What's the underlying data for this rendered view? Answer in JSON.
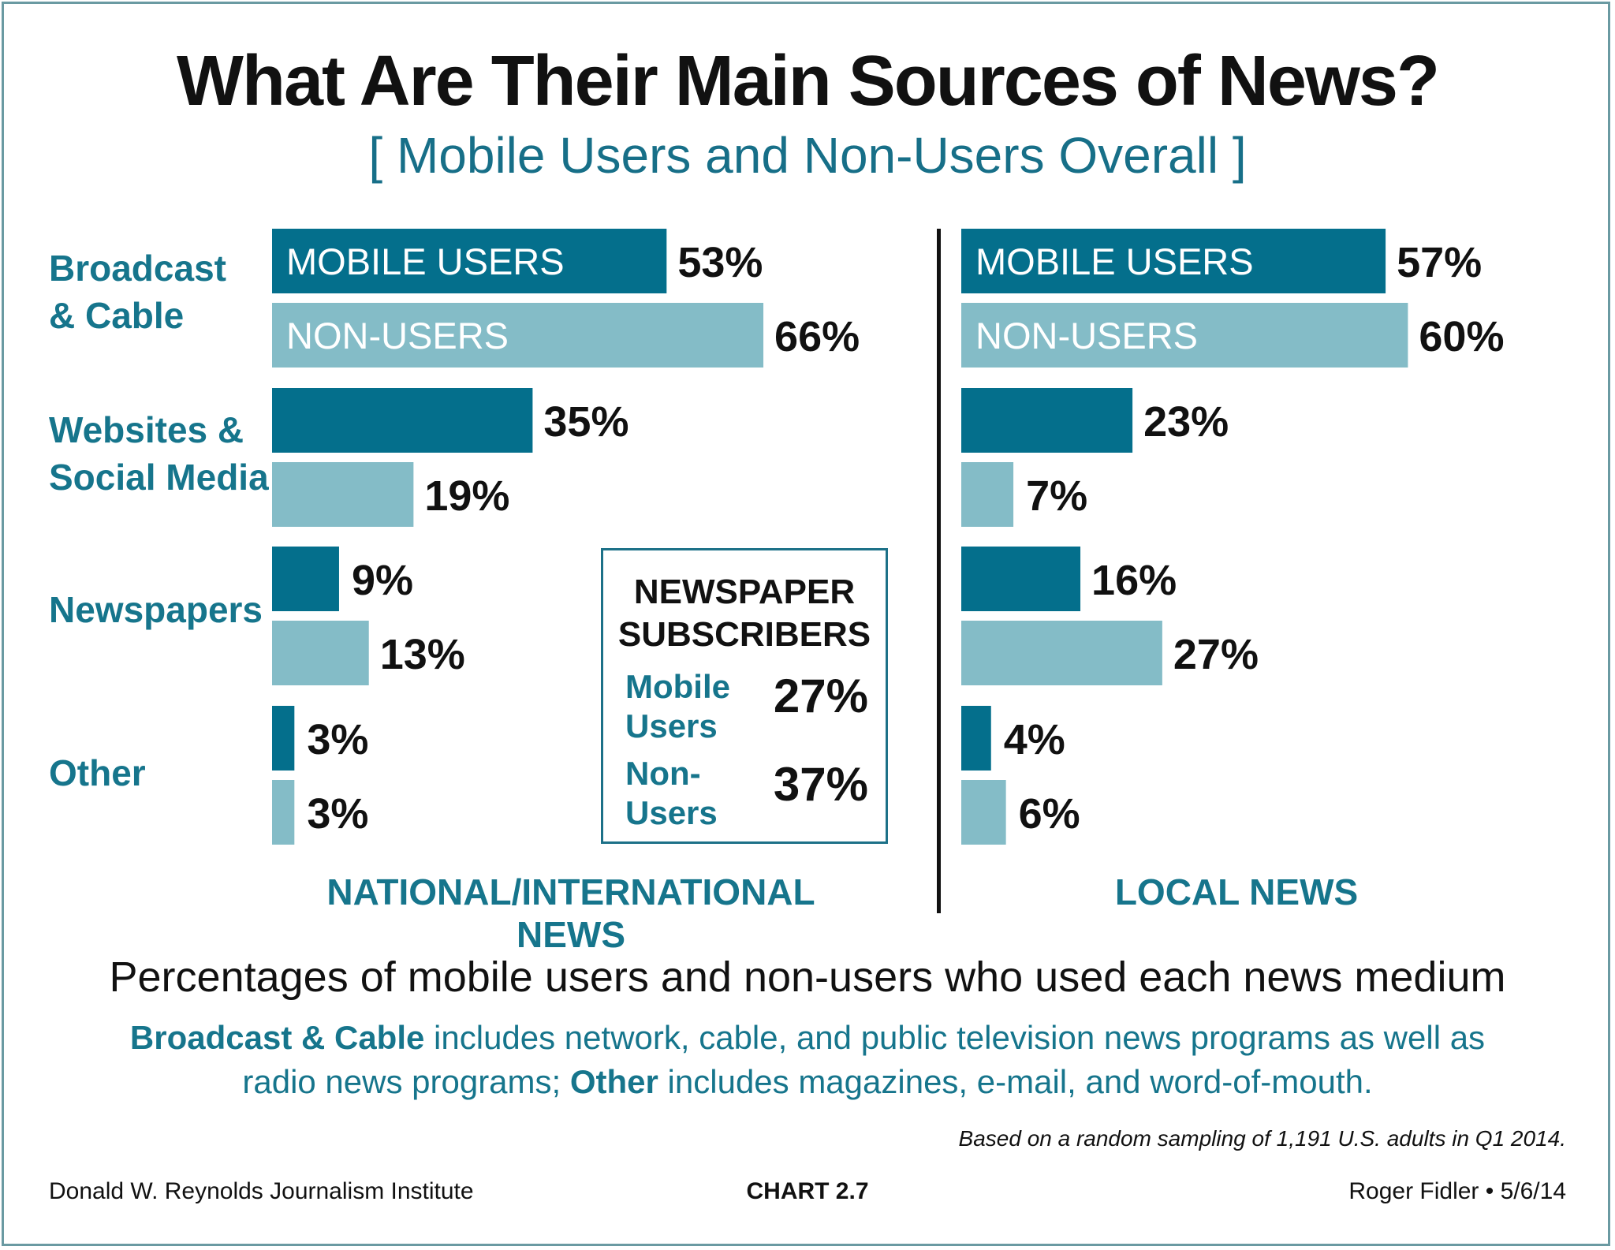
{
  "title": "What Are Their Main Sources of News?",
  "subtitle": "[ Mobile Users and Non-Users Overall ]",
  "colors": {
    "mobile": "#046f8c",
    "non_users": "#84bcc7",
    "accent_text": "#16758c",
    "bar_label_inside": "#ffffff",
    "value_text": "#111111"
  },
  "chart_data": [
    {
      "type": "bar",
      "orientation": "horizontal",
      "title": "NATIONAL/INTERNATIONAL NEWS",
      "categories": [
        "Broadcast & Cable",
        "Websites & Social Media",
        "Newspapers",
        "Other"
      ],
      "series": [
        {
          "name": "MOBILE USERS",
          "values": [
            53,
            35,
            9,
            3
          ]
        },
        {
          "name": "NON-USERS",
          "values": [
            66,
            19,
            13,
            3
          ]
        }
      ],
      "value_labels": [
        [
          "53%",
          "35%",
          "9%",
          "3%"
        ],
        [
          "66%",
          "19%",
          "13%",
          "3%"
        ]
      ],
      "xlim": [
        0,
        100
      ],
      "unit": "%",
      "grid": false
    },
    {
      "type": "bar",
      "orientation": "horizontal",
      "title": "LOCAL NEWS",
      "categories": [
        "Broadcast & Cable",
        "Websites & Social Media",
        "Newspapers",
        "Other"
      ],
      "series": [
        {
          "name": "MOBILE USERS",
          "values": [
            57,
            23,
            16,
            4
          ]
        },
        {
          "name": "NON-USERS",
          "values": [
            60,
            7,
            27,
            6
          ]
        }
      ],
      "value_labels": [
        [
          "57%",
          "23%",
          "16%",
          "4%"
        ],
        [
          "60%",
          "7%",
          "27%",
          "6%"
        ]
      ],
      "xlim": [
        0,
        100
      ],
      "unit": "%",
      "grid": false
    }
  ],
  "category_labels": [
    [
      "Broadcast",
      "& Cable"
    ],
    [
      "Websites &",
      "Social Media"
    ],
    [
      "Newspapers"
    ],
    [
      "Other"
    ]
  ],
  "series_names": [
    "MOBILE USERS",
    "NON-USERS"
  ],
  "panel_labels": {
    "national": "NATIONAL/INTERNATIONAL NEWS",
    "local": "LOCAL NEWS"
  },
  "subscribers_box": {
    "title_line1": "NEWSPAPER",
    "title_line2": "SUBSCRIBERS",
    "mobile_label_line1": "Mobile",
    "mobile_label_line2": "Users",
    "mobile_value": "27%",
    "non_label_line1": "Non-",
    "non_label_line2": "Users",
    "non_value": "37%"
  },
  "caption": "Percentages of mobile users and non-users who used each news medium",
  "note": {
    "bold1": "Broadcast & Cable",
    "text1": " includes network, cable, and public television news programs as well as",
    "text2": "radio news programs;  ",
    "bold2": "Other",
    "text3": " includes magazines, e-mail, and word-of-mouth."
  },
  "sample_note": "Based on a random sampling of 1,191 U.S. adults in Q1 2014.",
  "footer": {
    "left": "Donald W. Reynolds Journalism Institute",
    "center": "CHART 2.7",
    "right": "Roger Fidler • 5/6/14"
  }
}
